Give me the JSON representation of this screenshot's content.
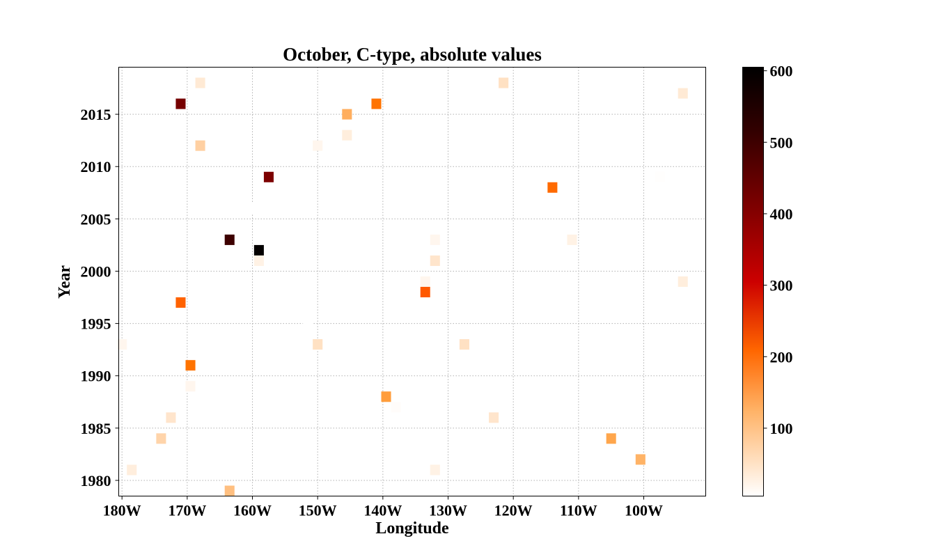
{
  "chart_data": {
    "type": "heatmap",
    "title": "October, C-type, absolute values",
    "xlabel": "Longitude",
    "ylabel": "Year",
    "xlim": [
      -180.5,
      -90.5
    ],
    "ylim": [
      1978.5,
      2019.5
    ],
    "x_ticks": [
      {
        "value": -180,
        "label": "180W"
      },
      {
        "value": -170,
        "label": "170W"
      },
      {
        "value": -160,
        "label": "160W"
      },
      {
        "value": -150,
        "label": "150W"
      },
      {
        "value": -140,
        "label": "140W"
      },
      {
        "value": -130,
        "label": "130W"
      },
      {
        "value": -120,
        "label": "120W"
      },
      {
        "value": -110,
        "label": "110W"
      },
      {
        "value": -100,
        "label": "100W"
      }
    ],
    "y_ticks": [
      {
        "value": 1980,
        "label": "1980"
      },
      {
        "value": 1985,
        "label": "1985"
      },
      {
        "value": 1990,
        "label": "1990"
      },
      {
        "value": 1995,
        "label": "1995"
      },
      {
        "value": 2000,
        "label": "2000"
      },
      {
        "value": 2005,
        "label": "2005"
      },
      {
        "value": 2010,
        "label": "2010"
      },
      {
        "value": 2015,
        "label": "2015"
      }
    ],
    "grid": true,
    "colormap": "gist_heat_r",
    "colorbar": {
      "min": 5,
      "max": 605,
      "ticks": [
        {
          "value": 100,
          "label": "100"
        },
        {
          "value": 200,
          "label": "200"
        },
        {
          "value": 300,
          "label": "300"
        },
        {
          "value": 400,
          "label": "400"
        },
        {
          "value": 500,
          "label": "500"
        },
        {
          "value": 600,
          "label": "600"
        }
      ]
    },
    "cells": [
      {
        "lon": -168,
        "year": 2018,
        "value": 30
      },
      {
        "lon": -121.5,
        "year": 2018,
        "value": 40
      },
      {
        "lon": -94,
        "year": 2017,
        "value": 30
      },
      {
        "lon": -171,
        "year": 2016,
        "value": 420
      },
      {
        "lon": -141,
        "year": 2016,
        "value": 170
      },
      {
        "lon": -145.5,
        "year": 2015,
        "value": 100
      },
      {
        "lon": -145.5,
        "year": 2013,
        "value": 25
      },
      {
        "lon": -168,
        "year": 2012,
        "value": 60
      },
      {
        "lon": -150,
        "year": 2012,
        "value": 15
      },
      {
        "lon": -157.5,
        "year": 2009,
        "value": 410
      },
      {
        "lon": -114,
        "year": 2008,
        "value": 180
      },
      {
        "lon": -97.5,
        "year": 2009,
        "value": 6
      },
      {
        "lon": -160.5,
        "year": 2006,
        "value": 5
      },
      {
        "lon": -163.5,
        "year": 2003,
        "value": 510
      },
      {
        "lon": -132,
        "year": 2003,
        "value": 15
      },
      {
        "lon": -111,
        "year": 2003,
        "value": 20
      },
      {
        "lon": -159,
        "year": 2002,
        "value": 600
      },
      {
        "lon": -159,
        "year": 2001,
        "value": 20
      },
      {
        "lon": -132,
        "year": 2001,
        "value": 35
      },
      {
        "lon": -133.5,
        "year": 1999,
        "value": 15
      },
      {
        "lon": -94,
        "year": 1999,
        "value": 25
      },
      {
        "lon": -133.5,
        "year": 1998,
        "value": 200
      },
      {
        "lon": -171,
        "year": 1997,
        "value": 190
      },
      {
        "lon": -151.5,
        "year": 1995,
        "value": 5
      },
      {
        "lon": -180,
        "year": 1993,
        "value": 15
      },
      {
        "lon": -150,
        "year": 1993,
        "value": 40
      },
      {
        "lon": -127.5,
        "year": 1993,
        "value": 40
      },
      {
        "lon": -169.5,
        "year": 1991,
        "value": 170
      },
      {
        "lon": -169.5,
        "year": 1989,
        "value": 15
      },
      {
        "lon": -139.5,
        "year": 1988,
        "value": 120
      },
      {
        "lon": -138,
        "year": 1987,
        "value": 8
      },
      {
        "lon": -172.5,
        "year": 1986,
        "value": 35
      },
      {
        "lon": -123,
        "year": 1986,
        "value": 35
      },
      {
        "lon": -174,
        "year": 1984,
        "value": 55
      },
      {
        "lon": -105,
        "year": 1984,
        "value": 110
      },
      {
        "lon": -100.5,
        "year": 1982,
        "value": 95
      },
      {
        "lon": -178.5,
        "year": 1981,
        "value": 25
      },
      {
        "lon": -132,
        "year": 1981,
        "value": 20
      },
      {
        "lon": -163.5,
        "year": 1979,
        "value": 80
      }
    ]
  }
}
